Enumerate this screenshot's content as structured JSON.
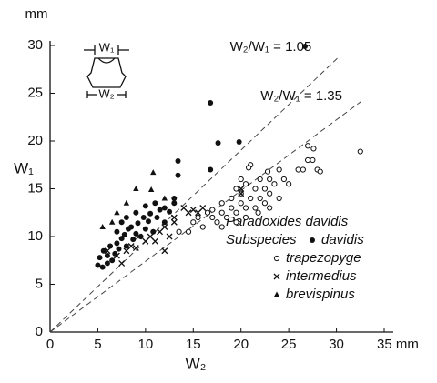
{
  "chart_data": {
    "type": "scatter",
    "y_unit": "mm",
    "y_label": "W₁",
    "x_label": "W₂",
    "xlim": [
      0,
      35
    ],
    "ylim": [
      0,
      30
    ],
    "xticks": [
      0,
      5,
      10,
      15,
      20,
      25,
      30,
      {
        "value": 35,
        "label": "35 mm"
      }
    ],
    "yticks": [
      0,
      5,
      10,
      15,
      20,
      25,
      30
    ],
    "reference_lines": [
      {
        "label": "W₂/W₁ = 1.05",
        "ratio": 1.05
      },
      {
        "label": "W₂/W₁ = 1.35",
        "ratio": 1.35
      }
    ],
    "inset_labels": [
      "W₁",
      "W₂"
    ],
    "legend_title": "Paradoxides davidis",
    "legend_subtitle": "Subspecies",
    "series": [
      {
        "name": "davidis",
        "marker": "filled-circle",
        "color": "#111111",
        "x": [
          5,
          5.2,
          5.5,
          5.6,
          6,
          6,
          6.3,
          6.5,
          6.8,
          7,
          7,
          7.2,
          7.5,
          7.5,
          7.8,
          8,
          8,
          8.2,
          8.5,
          8.7,
          9,
          9,
          9.2,
          9.5,
          9.8,
          10,
          10,
          10.3,
          10.5,
          10.8,
          11,
          11.2,
          11.5,
          12,
          12,
          12.5,
          13,
          13,
          13.4,
          13.4,
          16.8,
          17.6,
          19.8,
          16.8,
          26.7
        ],
        "values": [
          7,
          7.8,
          6.8,
          8.5,
          7.2,
          8,
          9,
          7.5,
          8.2,
          9.3,
          10.5,
          8.7,
          9.8,
          11.5,
          10.2,
          9,
          12,
          10.8,
          11,
          9.7,
          10.3,
          12.5,
          11.4,
          10,
          12,
          10.8,
          13.2,
          11.6,
          12.4,
          10.5,
          13.5,
          12,
          12.8,
          11.5,
          13,
          12.6,
          13.5,
          14,
          16.4,
          17.9,
          17,
          19.8,
          19.9,
          24,
          29.9
        ]
      },
      {
        "name": "trapezopyge",
        "marker": "circle",
        "color": "#111111",
        "x": [
          13.5,
          14.5,
          15,
          16,
          16.5,
          17,
          17.5,
          18,
          18,
          18.5,
          19,
          19,
          19.5,
          19.5,
          20,
          20,
          20,
          20.5,
          20.5,
          20.5,
          21,
          21,
          21.5,
          21.5,
          22,
          22,
          22.5,
          22.5,
          23,
          23,
          23.5,
          24,
          24,
          24.5,
          25,
          26,
          26.5,
          27,
          27,
          27.5,
          27.6,
          28,
          28.3,
          32.5,
          19.5,
          18,
          21.8,
          20.8,
          23,
          17,
          15.5,
          22.8
        ],
        "values": [
          10.5,
          10.5,
          11.5,
          11,
          12.5,
          12,
          11.5,
          12.5,
          13.5,
          12,
          13,
          14,
          12.5,
          15,
          13.5,
          14.5,
          16,
          12,
          13,
          15.5,
          14,
          17.5,
          13,
          15,
          14,
          16,
          13.5,
          15,
          14.5,
          16,
          15.5,
          14,
          17,
          16,
          15.5,
          17,
          17,
          18,
          19.5,
          18,
          19.2,
          17,
          16.8,
          18.9,
          11.5,
          11,
          12.5,
          17.2,
          13,
          12.8,
          12,
          16.8
        ]
      },
      {
        "name": "intermedius",
        "marker": "x",
        "color": "#111111",
        "x": [
          6,
          7,
          7.5,
          8,
          8.5,
          9,
          9.3,
          10,
          10.5,
          11,
          11.5,
          12,
          12,
          12.5,
          13,
          13,
          14,
          14.5,
          15,
          15.5,
          16,
          20,
          20
        ],
        "values": [
          8.5,
          8,
          7.2,
          8.5,
          9,
          8.8,
          10,
          9.5,
          10,
          9.5,
          10.5,
          8.5,
          11,
          10,
          11.5,
          12,
          13,
          12.5,
          12.8,
          12.5,
          13,
          14.5,
          15
        ]
      },
      {
        "name": "brevispinus",
        "marker": "triangle",
        "color": "#111111",
        "x": [
          5.5,
          6.5,
          7,
          8,
          9,
          10.8,
          10.6,
          12
        ],
        "values": [
          11,
          11.5,
          12.5,
          13.5,
          15,
          16.7,
          14.9,
          14
        ]
      }
    ]
  }
}
